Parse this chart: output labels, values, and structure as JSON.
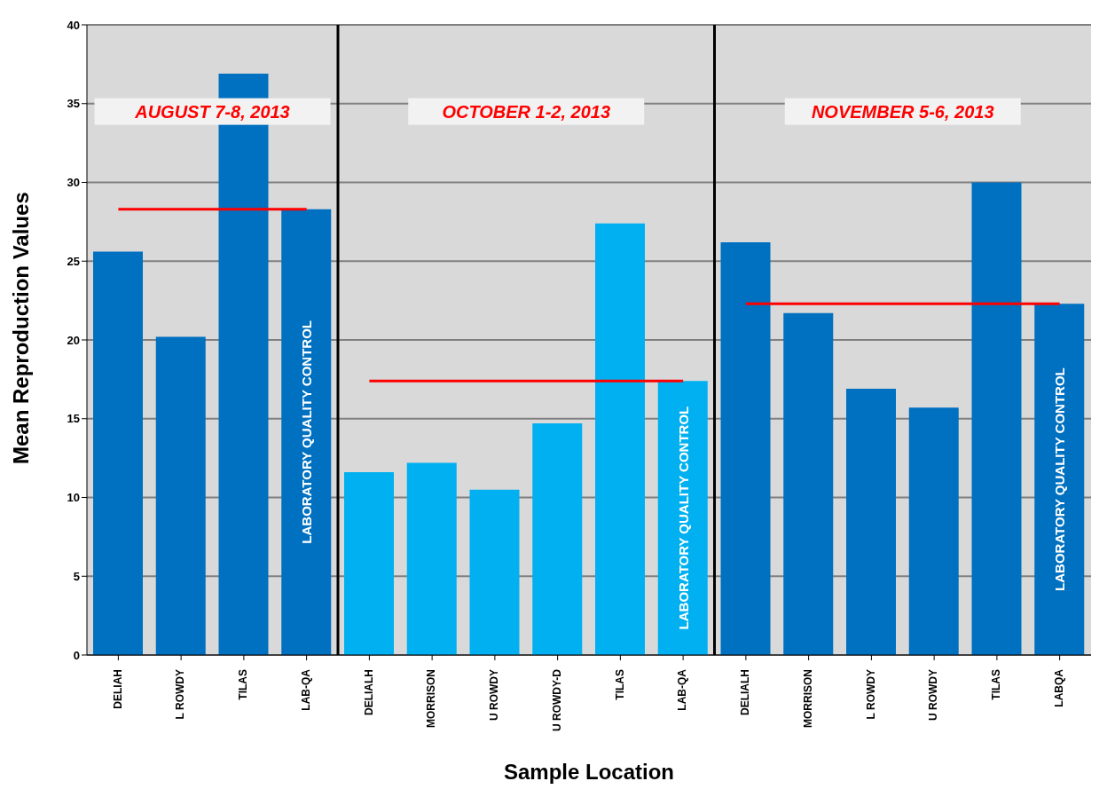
{
  "chart_data": {
    "type": "bar",
    "xlabel": "Sample Location",
    "ylabel": "Mean Reproduction Values",
    "categories": [
      "DELIAH",
      "L ROWDY",
      "TILAS",
      "LAB-QA",
      "DELIALH",
      "MORRISON",
      "U ROWDY",
      "U ROWDY-D",
      "TILAS",
      "LAB-QA",
      "DELIALH",
      "MORRISON",
      "L ROWDY",
      "U ROWDY",
      "TILAS",
      "LABQA"
    ],
    "series": [
      {
        "values": [
          25.6,
          20.2,
          36.9,
          28.3,
          11.6,
          12.2,
          10.5,
          14.7,
          27.4,
          17.4,
          26.2,
          21.7,
          16.9,
          15.7,
          30.0,
          22.3
        ],
        "colors": [
          "#0070c0",
          "#0070c0",
          "#0070c0",
          "#0070c0",
          "#00b0f0",
          "#00b0f0",
          "#00b0f0",
          "#00b0f0",
          "#00b0f0",
          "#00b0f0",
          "#0070c0",
          "#0070c0",
          "#0070c0",
          "#0070c0",
          "#0070c0",
          "#0070c0"
        ]
      },
      {
        "type": "line",
        "color": "#ff0000",
        "values": [
          28.3,
          28.3,
          28.3,
          28.3,
          null,
          null,
          null,
          null,
          null,
          null,
          null,
          null,
          null,
          null,
          null,
          null
        ]
      },
      {
        "type": "line",
        "color": "#ff0000",
        "values": [
          null,
          null,
          null,
          null,
          17.4,
          17.4,
          17.4,
          17.4,
          17.4,
          17.4,
          null,
          null,
          null,
          null,
          null,
          null
        ]
      },
      {
        "type": "line",
        "color": "#ff0000",
        "values": [
          null,
          null,
          null,
          null,
          null,
          null,
          null,
          null,
          null,
          null,
          22.3,
          22.3,
          22.3,
          22.3,
          22.3,
          22.3
        ]
      }
    ],
    "annotations": [
      "AUGUST 7-8, 2013",
      "OCTOBER 1-2, 2013",
      "NOVEMBER 5-6, 2013",
      "LABORATORY QUALITY CONTROL",
      "LABORATORY QUALITY CONTROL",
      "LABORATORY QUALITY CONTROL"
    ],
    "ylim": [
      0,
      40
    ],
    "yticks": [
      0,
      5,
      10,
      15,
      20,
      25,
      30,
      35,
      40
    ],
    "grid": "y",
    "legend": false
  }
}
